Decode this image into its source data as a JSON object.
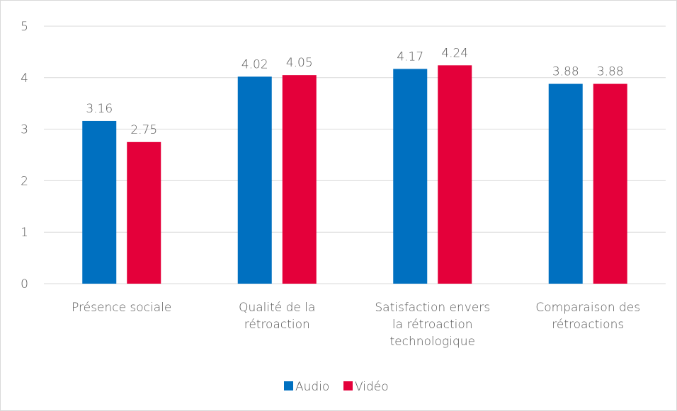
{
  "chart_data": {
    "type": "bar",
    "categories": [
      "Présence sociale",
      "Qualité de la rétroaction",
      "Satisfaction envers la rétroaction technologique",
      "Comparaison des rétroactions"
    ],
    "series": [
      {
        "name": "Audio",
        "color": "#0070c0",
        "values": [
          3.16,
          4.02,
          4.17,
          3.88
        ]
      },
      {
        "name": "Vidéo",
        "color": "#e4003a",
        "values": [
          2.75,
          4.05,
          4.24,
          3.88
        ]
      }
    ],
    "ylim": [
      0,
      5
    ],
    "yticks": [
      0,
      1,
      2,
      3,
      4,
      5
    ],
    "grid": true,
    "legend": "bottom"
  }
}
